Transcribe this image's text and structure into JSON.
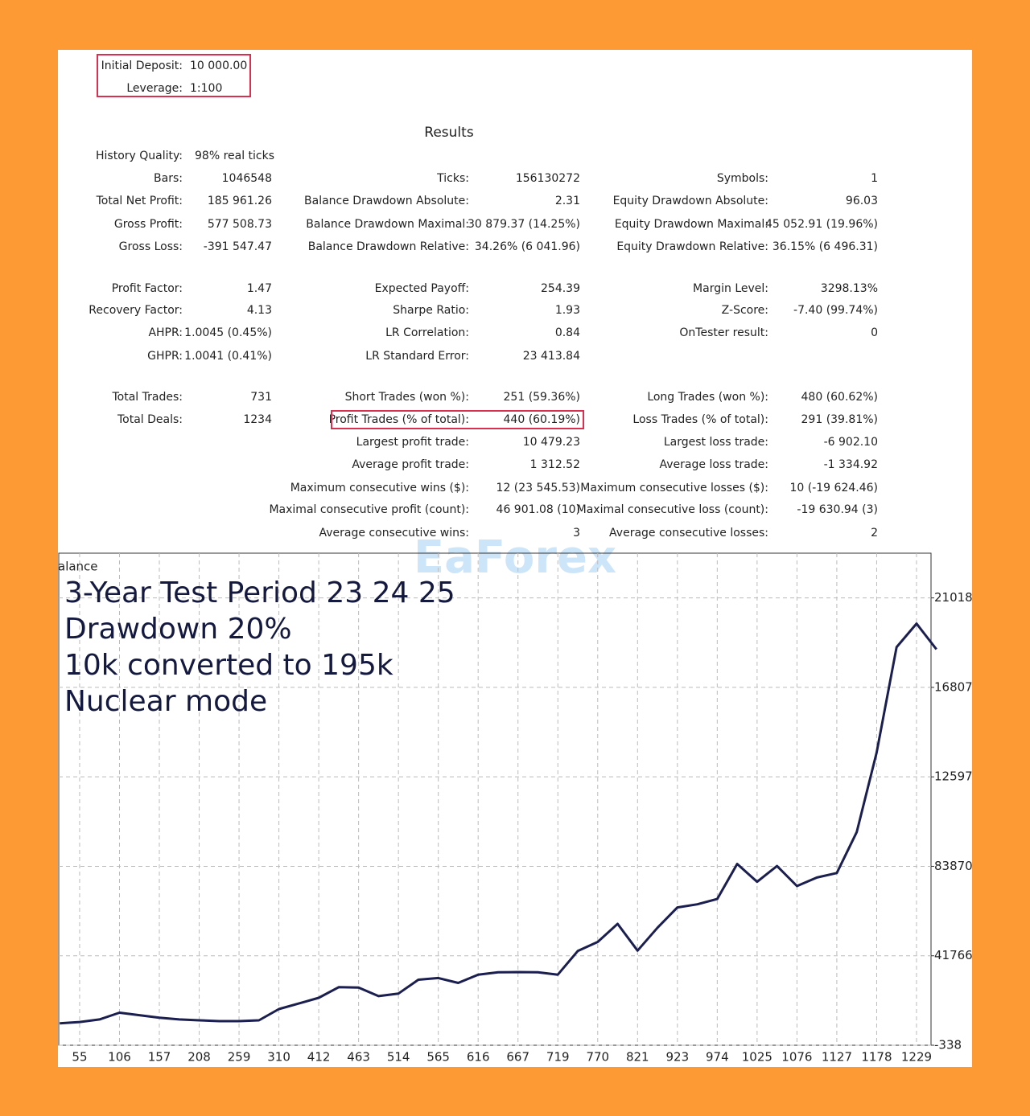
{
  "report": {
    "deposit": [
      [
        "Initial Deposit:",
        "10 000.00"
      ],
      [
        "Leverage:",
        "1:100"
      ]
    ],
    "title": "Results",
    "rows": [
      [
        [
          "History Quality:",
          "98% real ticks"
        ],
        null,
        null
      ],
      [
        [
          "Bars:",
          "1046548"
        ],
        [
          "Ticks:",
          "156130272"
        ],
        [
          "Symbols:",
          "1"
        ]
      ],
      [
        [
          "Total Net Profit:",
          "185 961.26"
        ],
        [
          "Balance Drawdown Absolute:",
          "2.31"
        ],
        [
          "Equity Drawdown Absolute:",
          "96.03"
        ]
      ],
      [
        [
          "Gross Profit:",
          "577 508.73"
        ],
        [
          "Balance Drawdown Maximal:",
          "30 879.37 (14.25%)"
        ],
        [
          "Equity Drawdown Maximal:",
          "45 052.91 (19.96%)"
        ]
      ],
      [
        [
          "Gross Loss:",
          "-391 547.47"
        ],
        [
          "Balance Drawdown Relative:",
          "34.26% (6 041.96)"
        ],
        [
          "Equity Drawdown Relative:",
          "36.15% (6 496.31)"
        ]
      ],
      [
        [
          "Profit Factor:",
          "1.47"
        ],
        [
          "Expected Payoff:",
          "254.39"
        ],
        [
          "Margin Level:",
          "3298.13%"
        ]
      ],
      [
        [
          "Recovery Factor:",
          "4.13"
        ],
        [
          "Sharpe Ratio:",
          "1.93"
        ],
        [
          "Z-Score:",
          "-7.40 (99.74%)"
        ]
      ],
      [
        [
          "AHPR:",
          "1.0045 (0.45%)"
        ],
        [
          "LR Correlation:",
          "0.84"
        ],
        [
          "OnTester result:",
          "0"
        ]
      ],
      [
        [
          "GHPR:",
          "1.0041 (0.41%)"
        ],
        [
          "LR Standard Error:",
          "23 413.84"
        ],
        null
      ],
      [
        [
          "Total Trades:",
          "731"
        ],
        [
          "Short Trades (won %):",
          "251 (59.36%)"
        ],
        [
          "Long Trades (won %):",
          "480 (60.62%)"
        ]
      ],
      [
        [
          "Total Deals:",
          "1234"
        ],
        [
          "Profit Trades (% of total):",
          "440 (60.19%)"
        ],
        [
          "Loss Trades (% of total):",
          "291 (39.81%)"
        ]
      ],
      [
        null,
        [
          "Largest profit trade:",
          "10 479.23"
        ],
        [
          "Largest loss trade:",
          "-6 902.10"
        ]
      ],
      [
        null,
        [
          "Average profit trade:",
          "1 312.52"
        ],
        [
          "Average loss trade:",
          "-1 334.92"
        ]
      ],
      [
        null,
        [
          "Maximum consecutive wins ($):",
          "12 (23 545.53)"
        ],
        [
          "Maximum consecutive losses ($):",
          "10 (-19 624.46)"
        ]
      ],
      [
        null,
        [
          "Maximal consecutive profit (count):",
          "46 901.08 (10)"
        ],
        [
          "Maximal consecutive loss (count):",
          "-19 630.94 (3)"
        ]
      ],
      [
        null,
        [
          "Average consecutive wins:",
          "3"
        ],
        [
          "Average consecutive losses:",
          "2"
        ]
      ]
    ]
  },
  "watermark": "EaForex",
  "chart_data": {
    "type": "line",
    "y_label": "alance",
    "annotations": [
      "3-Year Test Period 23 24 25",
      "Drawdown 20%",
      "10k converted to 195k",
      "Nuclear mode"
    ],
    "categories": [
      null,
      "55",
      null,
      "106",
      null,
      "157",
      null,
      "208",
      null,
      "259",
      null,
      "310",
      null,
      "412",
      null,
      "463",
      null,
      "514",
      null,
      "565",
      null,
      "616",
      null,
      "667",
      null,
      "719",
      null,
      "770",
      null,
      "821",
      null,
      "923",
      null,
      "974",
      null,
      "1025",
      null,
      "1076",
      null,
      "1127",
      null,
      "1178",
      null,
      "1229",
      null
    ],
    "series": [
      {
        "name": "Balance",
        "color": "#1b1f50",
        "values": [
          10000,
          10600,
          11800,
          15000,
          13800,
          12600,
          11800,
          11400,
          11000,
          11000,
          11400,
          16700,
          19300,
          22000,
          27000,
          26800,
          22800,
          24000,
          30500,
          31300,
          29000,
          32900,
          34000,
          34100,
          34000,
          32900,
          44000,
          48300,
          56800,
          44200,
          55000,
          64500,
          66000,
          68500,
          85000,
          76600,
          84000,
          74600,
          78600,
          80700,
          100000,
          137400,
          187000,
          198100,
          186000
        ]
      }
    ],
    "ylim": [
      -338,
      231234
    ],
    "yticks": [
      -338,
      41766,
      83870,
      {
        "value": 125974,
        "label": "12597"
      },
      {
        "value": 168078,
        "label": "16807"
      },
      {
        "value": 210182,
        "label": "21018"
      }
    ],
    "grid": true
  }
}
